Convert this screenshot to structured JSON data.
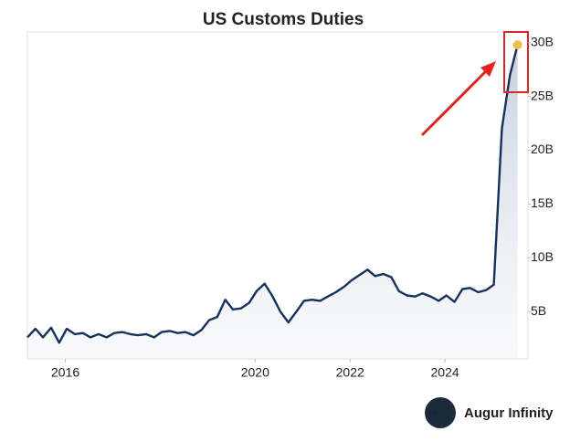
{
  "chart_data": {
    "type": "line",
    "title": "US Customs Duties",
    "x": [
      2015.2,
      2015.37,
      2015.53,
      2015.7,
      2015.87,
      2016.03,
      2016.2,
      2016.37,
      2016.53,
      2016.7,
      2016.87,
      2017.03,
      2017.2,
      2017.37,
      2017.53,
      2017.7,
      2017.87,
      2018.03,
      2018.2,
      2018.37,
      2018.53,
      2018.7,
      2018.87,
      2019.03,
      2019.2,
      2019.37,
      2019.53,
      2019.7,
      2019.87,
      2020.03,
      2020.2,
      2020.37,
      2020.53,
      2020.7,
      2020.87,
      2021.03,
      2021.2,
      2021.37,
      2021.53,
      2021.7,
      2021.87,
      2022.03,
      2022.2,
      2022.37,
      2022.53,
      2022.7,
      2022.87,
      2023.03,
      2023.2,
      2023.37,
      2023.53,
      2023.7,
      2023.87,
      2024.03,
      2024.2,
      2024.37,
      2024.53,
      2024.7,
      2024.87,
      2025.03,
      2025.2,
      2025.37,
      2025.53
    ],
    "values": [
      2.6,
      3.4,
      2.6,
      3.5,
      2.1,
      3.4,
      2.9,
      3.0,
      2.6,
      2.9,
      2.6,
      3.0,
      3.1,
      2.9,
      2.8,
      2.9,
      2.6,
      3.1,
      3.2,
      3.0,
      3.1,
      2.8,
      3.3,
      4.2,
      4.5,
      6.1,
      5.2,
      5.3,
      5.8,
      6.9,
      7.6,
      6.4,
      5.0,
      4.0,
      5.0,
      6.0,
      6.1,
      6.0,
      6.4,
      6.8,
      7.3,
      7.9,
      8.4,
      8.9,
      8.3,
      8.5,
      8.2,
      6.9,
      6.5,
      6.4,
      6.7,
      6.4,
      6.0,
      6.5,
      5.9,
      7.1,
      7.2,
      6.8,
      7.0,
      7.5,
      22.0,
      27.0,
      29.8
    ],
    "color": "#16325c",
    "marker_color": "#e8c04a",
    "xlim": [
      2015.2,
      2025.75
    ],
    "xticks": [
      2016,
      2020,
      2022,
      2024
    ],
    "ylim": [
      0.6,
      31
    ],
    "yticks": [
      {
        "value": 5,
        "label": "5B"
      },
      {
        "value": 10,
        "label": "10B"
      },
      {
        "value": 15,
        "label": "15B"
      },
      {
        "value": 20,
        "label": "20B"
      },
      {
        "value": 25,
        "label": "25B"
      },
      {
        "value": 30,
        "label": "30B"
      }
    ],
    "watermark": "Augur Infinity"
  }
}
